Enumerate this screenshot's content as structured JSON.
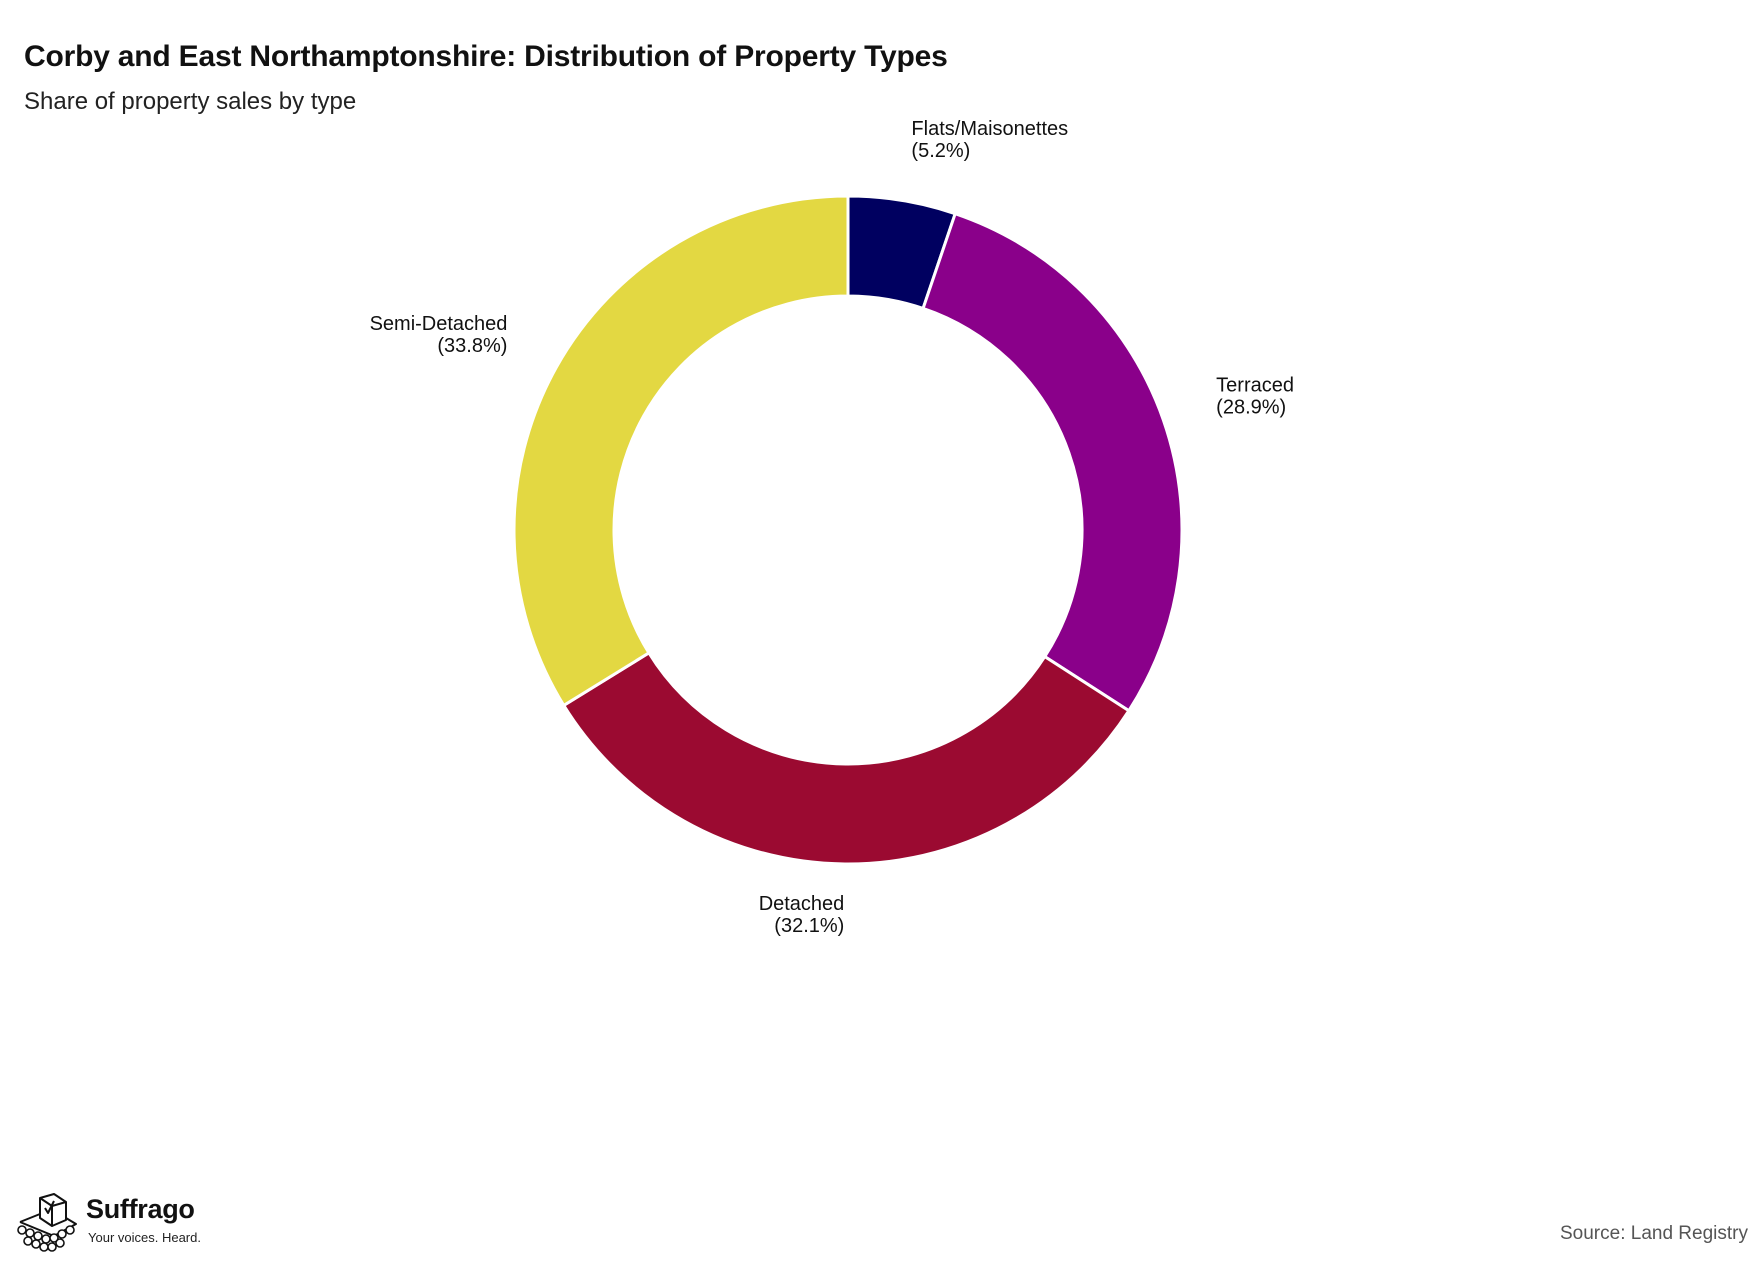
{
  "chart_data": {
    "type": "pie",
    "variant": "donut",
    "title": "Corby and East Northamptonshire: Distribution of Property Types",
    "subtitle": "Share of property sales by type",
    "slices": [
      {
        "label": "Flats/Maisonettes",
        "value": 5.2,
        "value_label": "(5.2%)",
        "color": "#000060"
      },
      {
        "label": "Terraced",
        "value": 28.9,
        "value_label": "(28.9%)",
        "color": "#8a008a"
      },
      {
        "label": "Detached",
        "value": 32.1,
        "value_label": "(32.1%)",
        "color": "#9b0a31"
      },
      {
        "label": "Semi-Detached",
        "value": 33.8,
        "value_label": "(33.8%)",
        "color": "#e3d842"
      }
    ],
    "start_angle": "12 o'clock",
    "direction": "clockwise",
    "legend": "none",
    "slice_separator_color": "#ffffff"
  },
  "source": "Source: Land Registry",
  "branding": {
    "name": "Suffrago",
    "tagline": "Your voices. Heard.",
    "icon": "ballot-box-crowd-icon"
  }
}
